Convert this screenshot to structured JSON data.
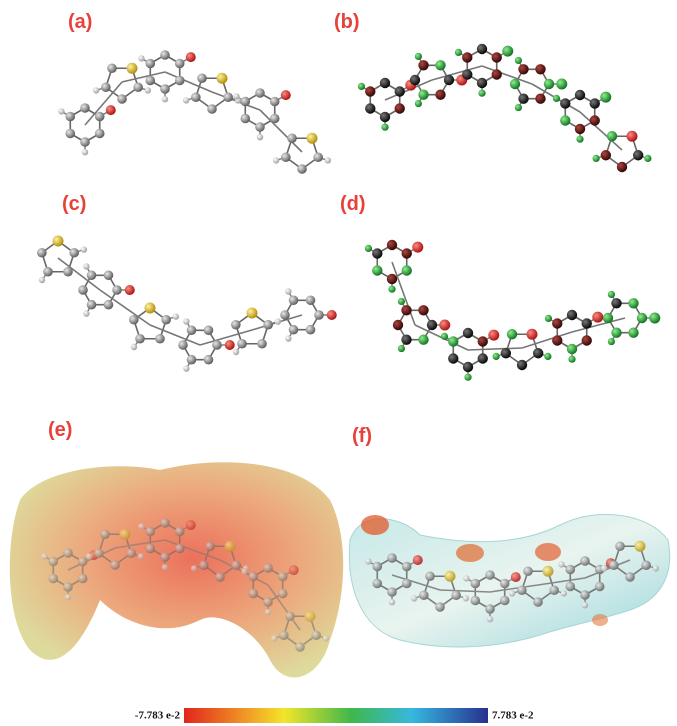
{
  "panels": [
    {
      "label": "(a)"
    },
    {
      "label": "(b)"
    },
    {
      "label": "(c)"
    },
    {
      "label": "(d)"
    },
    {
      "label": "(e)"
    },
    {
      "label": "(f)"
    }
  ],
  "color_scale": {
    "min_label": "-7.783 e-2",
    "max_label": "7.783 e-2"
  }
}
